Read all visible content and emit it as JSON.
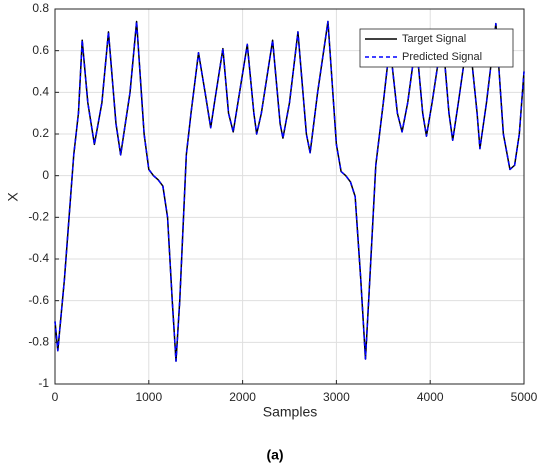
{
  "chart_data": {
    "type": "line",
    "xlabel": "Samples",
    "ylabel": "X",
    "caption": "(a)",
    "x": [
      0,
      30,
      100,
      200,
      250,
      290,
      350,
      420,
      500,
      570,
      650,
      700,
      800,
      870,
      950,
      1000,
      1050,
      1100,
      1150,
      1200,
      1250,
      1290,
      1330,
      1400,
      1450,
      1530,
      1600,
      1660,
      1700,
      1790,
      1850,
      1900,
      1950,
      2050,
      2120,
      2150,
      2200,
      2320,
      2400,
      2430,
      2500,
      2590,
      2680,
      2720,
      2800,
      2910,
      3000,
      3050,
      3100,
      3150,
      3200,
      3260,
      3310,
      3350,
      3420,
      3500,
      3570,
      3650,
      3700,
      3760,
      3850,
      3920,
      3960,
      4020,
      4130,
      4200,
      4240,
      4300,
      4410,
      4500,
      4530,
      4600,
      4700,
      4780,
      4850,
      4900,
      4950,
      5000
    ],
    "series": [
      {
        "name": "Target Signal",
        "color": "#000000",
        "dash": false,
        "values": [
          -0.7,
          -0.84,
          -0.5,
          0.1,
          0.3,
          0.65,
          0.35,
          0.15,
          0.35,
          0.69,
          0.25,
          0.1,
          0.4,
          0.74,
          0.2,
          0.03,
          0.0,
          -0.02,
          -0.05,
          -0.2,
          -0.6,
          -0.89,
          -0.6,
          0.1,
          0.3,
          0.59,
          0.4,
          0.23,
          0.35,
          0.61,
          0.3,
          0.21,
          0.35,
          0.63,
          0.3,
          0.2,
          0.3,
          0.65,
          0.25,
          0.18,
          0.35,
          0.69,
          0.2,
          0.11,
          0.4,
          0.74,
          0.15,
          0.02,
          0.0,
          -0.03,
          -0.1,
          -0.5,
          -0.88,
          -0.55,
          0.05,
          0.35,
          0.63,
          0.3,
          0.21,
          0.35,
          0.65,
          0.3,
          0.19,
          0.35,
          0.68,
          0.3,
          0.17,
          0.35,
          0.7,
          0.3,
          0.13,
          0.35,
          0.73,
          0.2,
          0.03,
          0.05,
          0.2,
          0.5
        ]
      },
      {
        "name": "Predicted Signal",
        "color": "#0000ff",
        "dash": true,
        "values": [
          -0.7,
          -0.84,
          -0.5,
          0.1,
          0.3,
          0.65,
          0.35,
          0.15,
          0.35,
          0.69,
          0.25,
          0.1,
          0.4,
          0.74,
          0.2,
          0.03,
          0.0,
          -0.02,
          -0.05,
          -0.2,
          -0.6,
          -0.89,
          -0.6,
          0.1,
          0.3,
          0.59,
          0.4,
          0.23,
          0.35,
          0.61,
          0.3,
          0.21,
          0.35,
          0.63,
          0.3,
          0.2,
          0.3,
          0.65,
          0.25,
          0.18,
          0.35,
          0.69,
          0.2,
          0.11,
          0.4,
          0.74,
          0.15,
          0.02,
          0.0,
          -0.03,
          -0.1,
          -0.5,
          -0.88,
          -0.55,
          0.05,
          0.35,
          0.63,
          0.3,
          0.21,
          0.35,
          0.65,
          0.3,
          0.19,
          0.35,
          0.68,
          0.3,
          0.17,
          0.35,
          0.7,
          0.3,
          0.13,
          0.35,
          0.73,
          0.2,
          0.03,
          0.05,
          0.2,
          0.5
        ]
      }
    ],
    "xlim": [
      0,
      5000
    ],
    "xticks": [
      0,
      1000,
      2000,
      3000,
      4000,
      5000
    ],
    "ylim": [
      -1,
      0.8
    ],
    "yticks": [
      -1,
      -0.8,
      -0.6,
      -0.4,
      -0.2,
      0,
      0.2,
      0.4,
      0.6,
      0.8
    ],
    "grid": true,
    "legend": "northeast"
  }
}
